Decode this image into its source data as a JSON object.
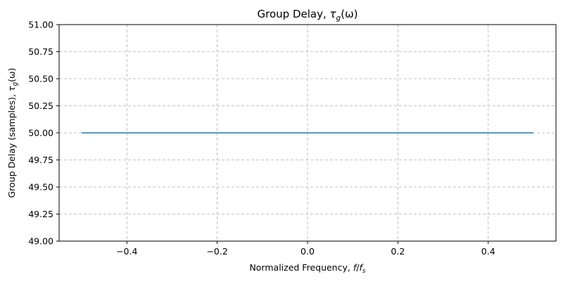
{
  "chart_data": {
    "type": "line",
    "title": {
      "prefix": "Group Delay, ",
      "symbol": "τ",
      "subscript": "g",
      "suffix": "(ω)"
    },
    "xlabel": {
      "prefix": "Normalized Frequency, ",
      "italic": "f",
      "slash": "/",
      "italic2": "f",
      "subscript": "s"
    },
    "ylabel": {
      "prefix": "Group Delay (samples), ",
      "symbol": "τ",
      "subscript": "g",
      "suffix": "(ω)"
    },
    "xlim": [
      -0.55,
      0.55
    ],
    "ylim": [
      49.0,
      51.0
    ],
    "x_ticks": [
      {
        "value": -0.4,
        "label": "−0.4"
      },
      {
        "value": -0.2,
        "label": "−0.2"
      },
      {
        "value": 0.0,
        "label": "0.0"
      },
      {
        "value": 0.2,
        "label": "0.2"
      },
      {
        "value": 0.4,
        "label": "0.4"
      }
    ],
    "y_ticks": [
      {
        "value": 49.0,
        "label": "49.00"
      },
      {
        "value": 49.25,
        "label": "49.25"
      },
      {
        "value": 49.5,
        "label": "49.50"
      },
      {
        "value": 49.75,
        "label": "49.75"
      },
      {
        "value": 50.0,
        "label": "50.00"
      },
      {
        "value": 50.25,
        "label": "50.25"
      },
      {
        "value": 50.5,
        "label": "50.50"
      },
      {
        "value": 50.75,
        "label": "50.75"
      },
      {
        "value": 51.0,
        "label": "51.00"
      }
    ],
    "grid": true,
    "series": [
      {
        "color": "#1f77b4",
        "x": [
          -0.5,
          -0.25,
          0.0,
          0.25,
          0.5
        ],
        "y": [
          50.0,
          50.0,
          50.0,
          50.0,
          50.0
        ]
      }
    ]
  }
}
